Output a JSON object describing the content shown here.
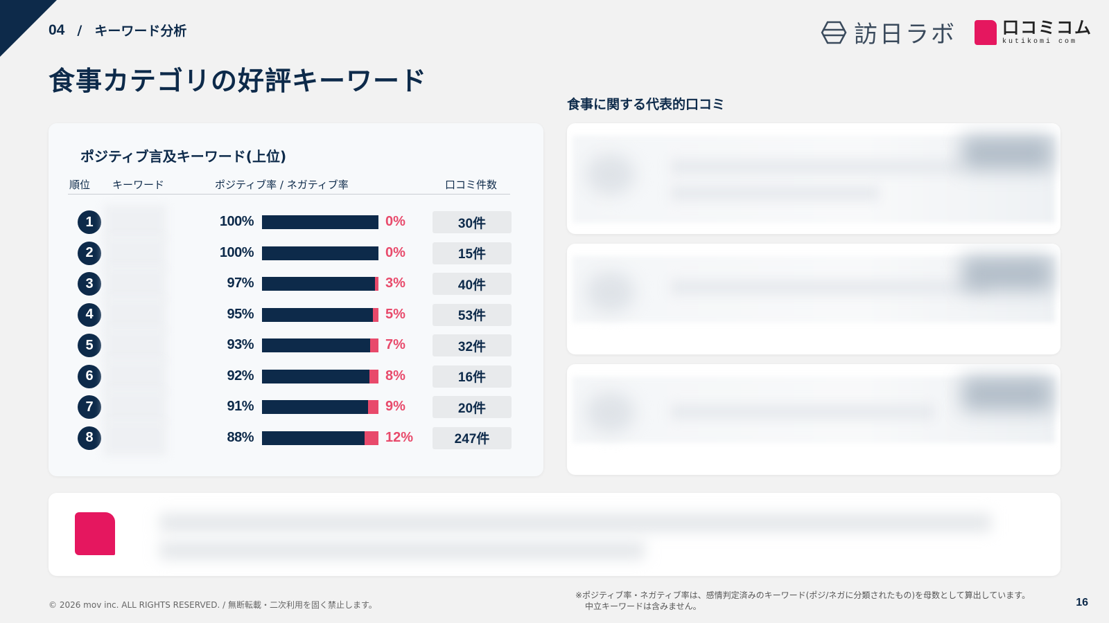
{
  "header": {
    "section_number": "04",
    "section_separator": "/",
    "section_title": "キーワード分析",
    "page_title": "食事カテゴリの好評キーワード",
    "logo_houjin": "訪日ラボ",
    "logo_kutikomi_jp": "口コミコム",
    "logo_kutikomi_en": "kutikomi com"
  },
  "keywords_panel": {
    "title": "ポジティブ言及キーワード(上位)",
    "columns": {
      "rank": "順位",
      "keyword": "キーワード",
      "rate": "ポジティブ率 / ネガティブ率",
      "count": "口コミ件数"
    },
    "rows": [
      {
        "rank": "1",
        "positive": "100%",
        "negative": "0%",
        "positive_fraction": 1.0,
        "count": "30件"
      },
      {
        "rank": "2",
        "positive": "100%",
        "negative": "0%",
        "positive_fraction": 1.0,
        "count": "15件"
      },
      {
        "rank": "3",
        "positive": "97%",
        "negative": "3%",
        "positive_fraction": 0.97,
        "count": "40件"
      },
      {
        "rank": "4",
        "positive": "95%",
        "negative": "5%",
        "positive_fraction": 0.95,
        "count": "53件"
      },
      {
        "rank": "5",
        "positive": "93%",
        "negative": "7%",
        "positive_fraction": 0.93,
        "count": "32件"
      },
      {
        "rank": "6",
        "positive": "92%",
        "negative": "8%",
        "positive_fraction": 0.92,
        "count": "16件"
      },
      {
        "rank": "7",
        "positive": "91%",
        "negative": "9%",
        "positive_fraction": 0.91,
        "count": "20件"
      },
      {
        "rank": "8",
        "positive": "88%",
        "negative": "12%",
        "positive_fraction": 0.88,
        "count": "247件"
      }
    ],
    "colors": {
      "positive": "#0d2a4a",
      "negative": "#e84a6b"
    }
  },
  "reviews": {
    "title": "食事に関する代表的口コミ"
  },
  "footer": {
    "copyright": "© 2026 mov inc. ALL RIGHTS RESERVED. / 無断転載・二次利用を固く禁止します。",
    "note_line1": "※ポジティブ率・ネガティブ率は、感情判定済みのキーワード(ポジ/ネガに分類されたもの)を母数として算出しています。",
    "note_line2": "中立キーワードは含みません。",
    "page_number": "16"
  }
}
